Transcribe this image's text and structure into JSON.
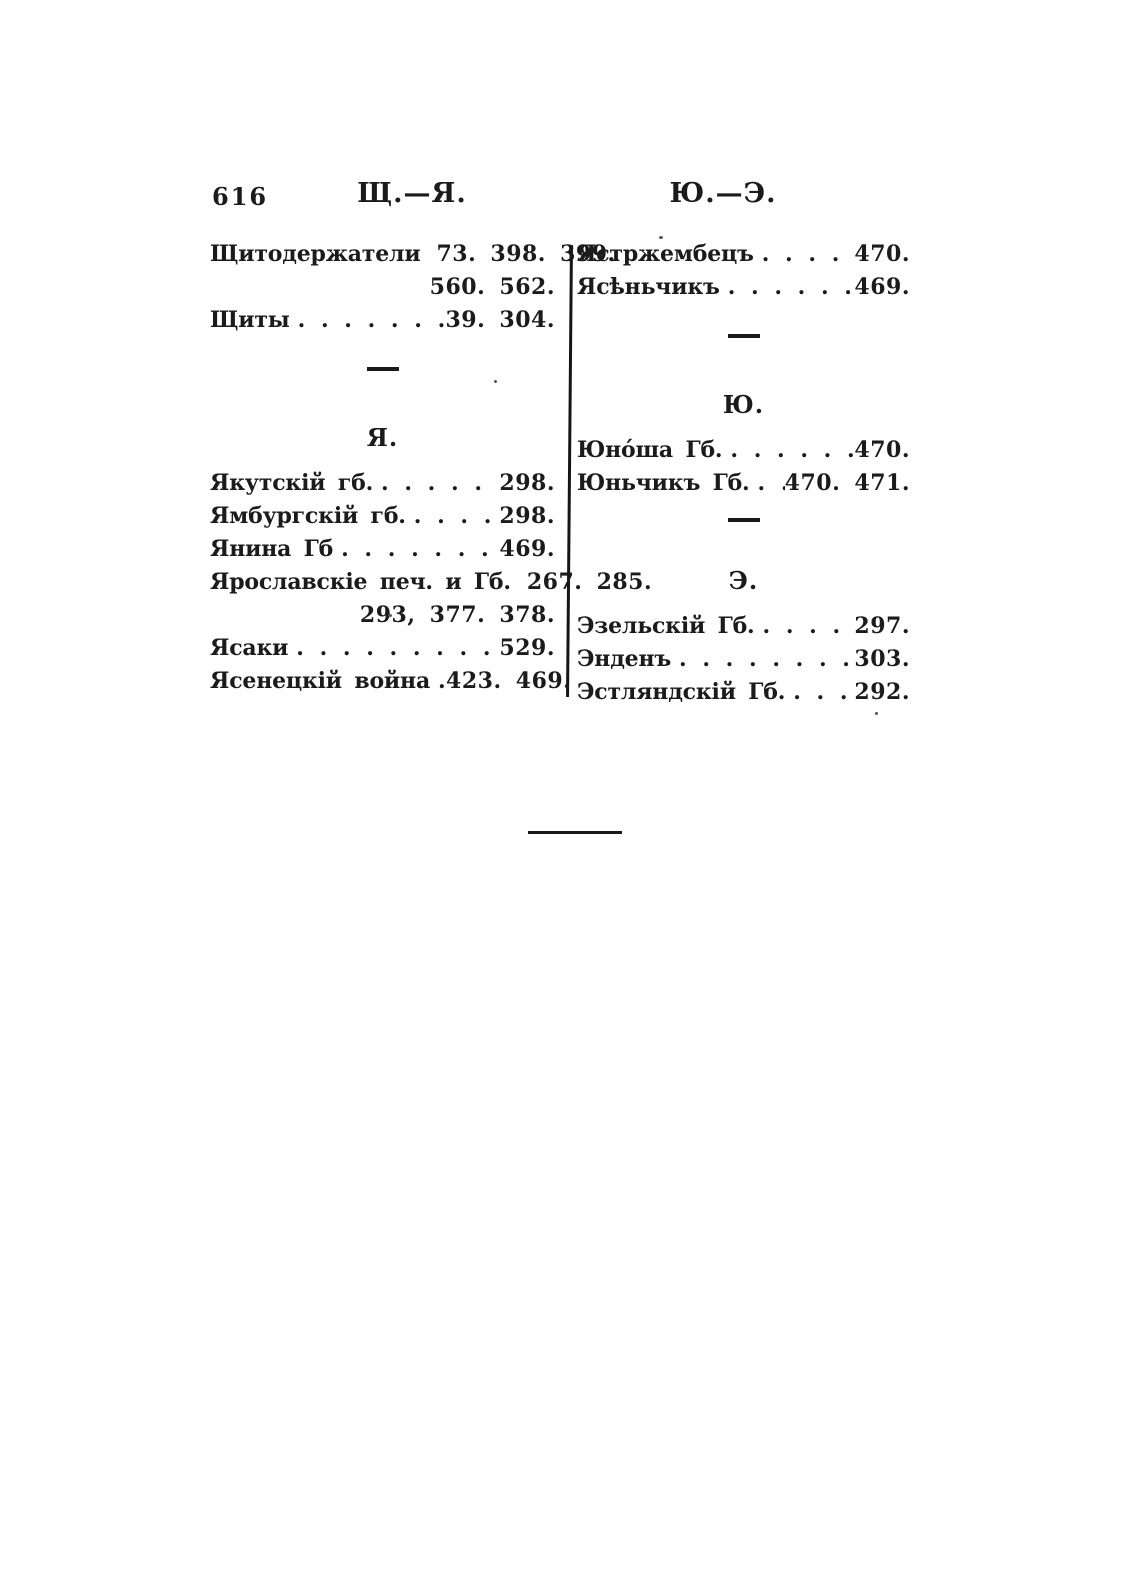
{
  "page": {
    "number": "616",
    "left_running_head": "Щ.—Я.",
    "right_running_head": "Ю.—Э."
  },
  "left_column": [
    {
      "type": "entry",
      "label": "Щитодержатели",
      "dots": "",
      "pages": "73. 398. 399.",
      "continuation": "560. 562."
    },
    {
      "type": "entry",
      "label": "Щиты",
      "dots": ". . . . . . . .",
      "pages": "39. 304."
    },
    {
      "type": "divider"
    },
    {
      "type": "section",
      "label": "Я."
    },
    {
      "type": "entry",
      "label": "Якутскій гб.",
      "dots": ". . . . . .",
      "pages": "298."
    },
    {
      "type": "entry",
      "label": "Ямбургскій гб.",
      "dots": ". . . . . .",
      "pages": "298."
    },
    {
      "type": "entry",
      "label": "Янина Гб",
      "dots": ". . . . . . . .",
      "pages": "469."
    },
    {
      "type": "entry",
      "label": "Ярославскіе печ. и Гб.",
      "dots": "",
      "pages": "267. 285.",
      "continuation": "293, 377. 378."
    },
    {
      "type": "entry",
      "label": "Ясаки",
      "dots": ". . . . . . . . . .",
      "pages": "529."
    },
    {
      "type": "entry",
      "label": "Ясенецкій война",
      "dots": ". . .",
      "pages": "423. 469."
    }
  ],
  "right_column": [
    {
      "type": "entry",
      "label": "Ястржембецъ",
      "dots": ". . . . . .",
      "pages": "470."
    },
    {
      "type": "entry",
      "label": "Ясѣньчикъ",
      "dots": ". . . . . . .",
      "pages": "469."
    },
    {
      "type": "divider"
    },
    {
      "type": "section",
      "label": "Ю."
    },
    {
      "type": "entry",
      "label": "Юно́ша Гб.",
      "dots": ". . . . . . . .",
      "pages": "470."
    },
    {
      "type": "entry",
      "label": "Юньчикъ Гб.",
      "dots": ". . . . .",
      "pages": "470. 471."
    },
    {
      "type": "divider"
    },
    {
      "type": "section",
      "label": "Э."
    },
    {
      "type": "entry",
      "label": "Эзельскій Гб.",
      "dots": ". . . . . . .",
      "pages": "297."
    },
    {
      "type": "entry",
      "label": "Энденъ",
      "dots": ". . . . . . . . .",
      "pages": "303."
    },
    {
      "type": "entry",
      "label": "Эстляндскій Гб.",
      "dots": ". . . . . .",
      "pages": "292."
    }
  ]
}
